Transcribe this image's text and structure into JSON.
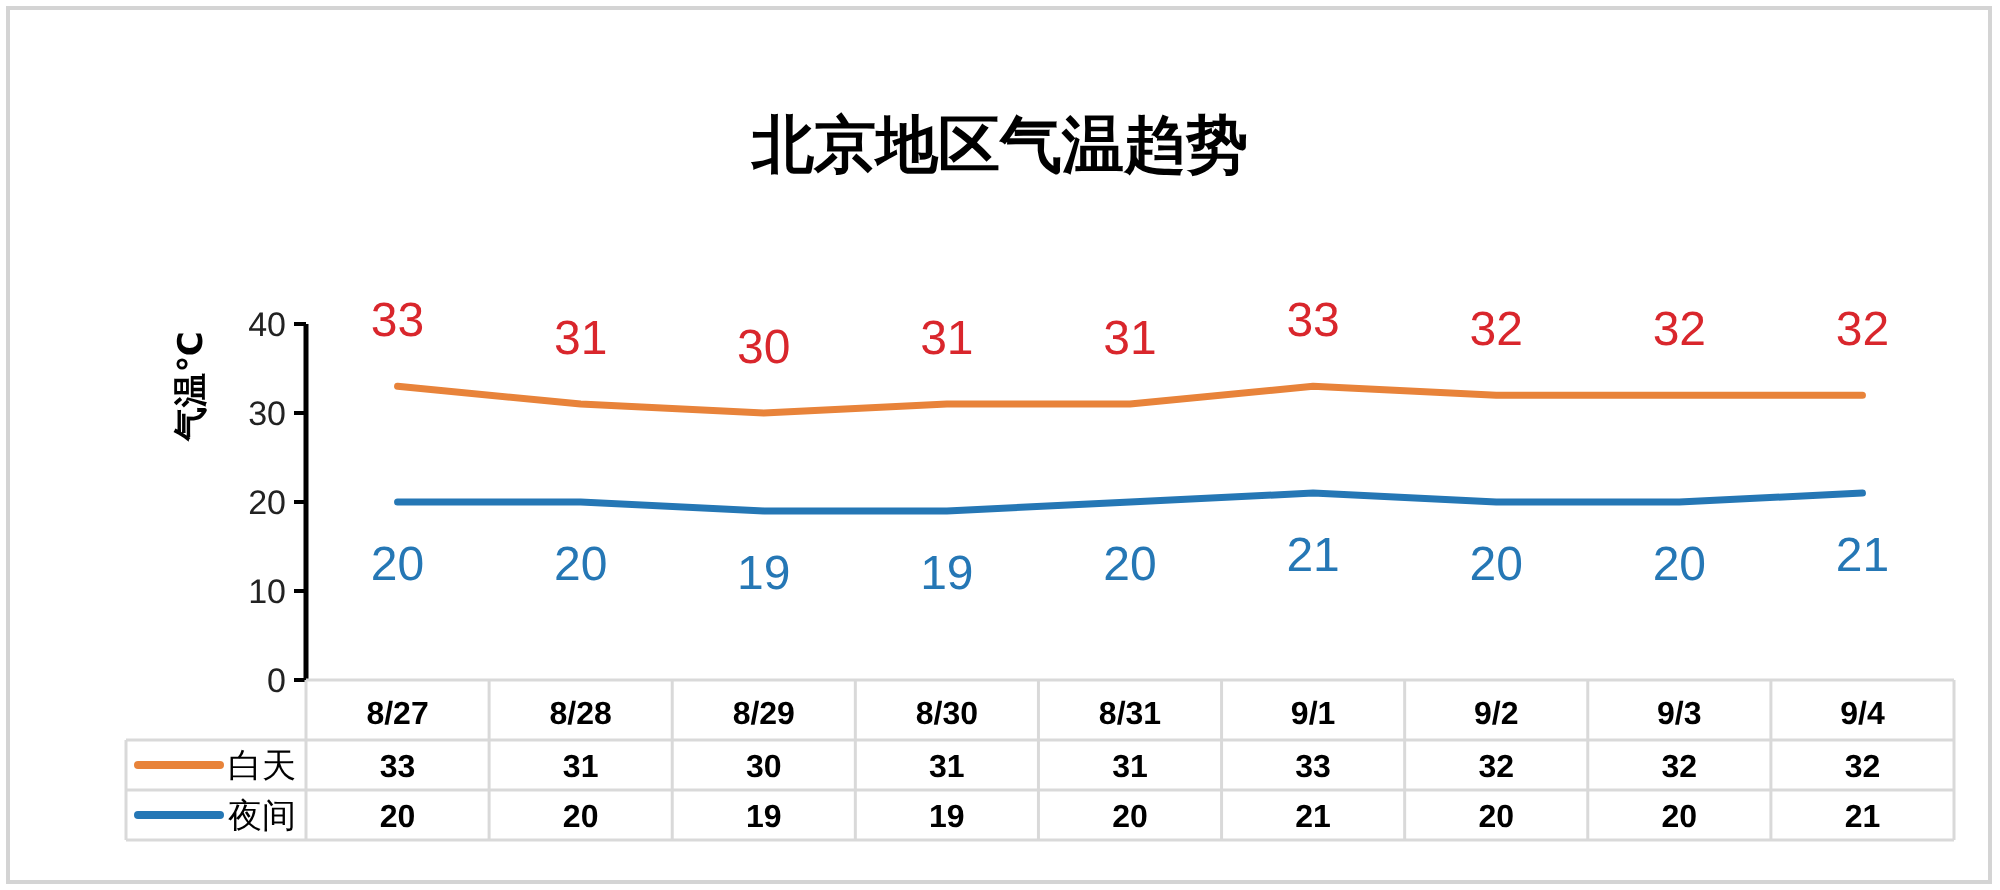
{
  "chart_data": {
    "type": "line",
    "title": "北京地区气温趋势",
    "ylabel": "气温℃",
    "categories": [
      "8/27",
      "8/28",
      "8/29",
      "8/30",
      "8/31",
      "9/1",
      "9/2",
      "9/3",
      "9/4"
    ],
    "series": [
      {
        "name": "白天",
        "color": "#e8833a",
        "values": [
          33,
          31,
          30,
          31,
          31,
          33,
          32,
          32,
          32
        ]
      },
      {
        "name": "夜间",
        "color": "#2577b5",
        "values": [
          20,
          20,
          19,
          19,
          20,
          21,
          20,
          20,
          21
        ]
      }
    ],
    "annotations": [
      {
        "text": "33",
        "x": "8/27",
        "y": 33
      },
      {
        "text": "31",
        "x": "8/28",
        "y": 31
      },
      {
        "text": "30",
        "x": "8/29",
        "y": 30
      },
      {
        "text": "31",
        "x": "8/30",
        "y": 31
      },
      {
        "text": "31",
        "x": "8/31",
        "y": 31
      },
      {
        "text": "33",
        "x": "9/1",
        "y": 33
      },
      {
        "text": "32",
        "x": "9/2",
        "y": 32
      },
      {
        "text": "32",
        "x": "9/3",
        "y": 32
      },
      {
        "text": "32",
        "x": "9/4",
        "y": 32
      },
      {
        "text": "20",
        "x": "8/27",
        "y": 20
      },
      {
        "text": "20",
        "x": "8/28",
        "y": 20
      },
      {
        "text": "19",
        "x": "8/29",
        "y": 19
      },
      {
        "text": "19",
        "x": "8/30",
        "y": 19
      },
      {
        "text": "20",
        "x": "8/31",
        "y": 20
      },
      {
        "text": "21",
        "x": "9/1",
        "y": 21
      },
      {
        "text": "20",
        "x": "9/2",
        "y": 20
      },
      {
        "text": "20",
        "x": "9/3",
        "y": 20
      },
      {
        "text": "21",
        "x": "9/4",
        "y": 21
      }
    ],
    "ylim": [
      0,
      40
    ],
    "yticks": [
      0,
      10,
      20,
      30,
      40
    ],
    "data_labels": true,
    "legend": "bottom",
    "grid": false,
    "marker": "none",
    "line_style": "solid"
  }
}
